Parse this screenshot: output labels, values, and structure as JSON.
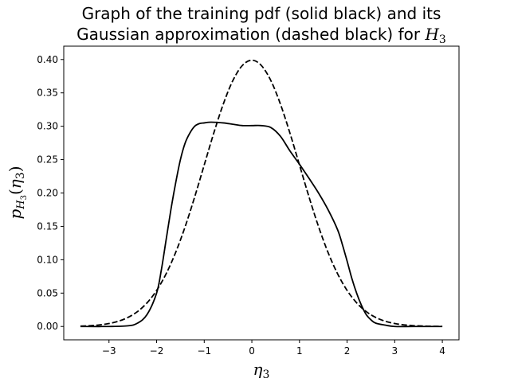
{
  "chart_data": {
    "type": "line",
    "title_line1": "Graph of the training pdf (solid black) and its",
    "title_line2_text": "Gaussian approximation (dashed black) for ",
    "title_line2_math": "H",
    "title_line2_sub": "3",
    "xlabel": {
      "symbol": "η",
      "sub": "3"
    },
    "ylabel": {
      "p": "p",
      "H": "H",
      "sub3a": "3",
      "eta": "η",
      "sub3b": "3"
    },
    "xlim": [
      -3.95,
      4.35
    ],
    "ylim": [
      -0.02,
      0.42
    ],
    "xticks": [
      -3,
      -2,
      -1,
      0,
      1,
      2,
      3,
      4
    ],
    "xtick_labels": [
      "−3",
      "−2",
      "−1",
      "0",
      "1",
      "2",
      "3",
      "4"
    ],
    "yticks": [
      0.0,
      0.05,
      0.1,
      0.15,
      0.2,
      0.25,
      0.3,
      0.35,
      0.4
    ],
    "ytick_labels": [
      "0.00",
      "0.05",
      "0.10",
      "0.15",
      "0.20",
      "0.25",
      "0.30",
      "0.35",
      "0.40"
    ],
    "grid": false,
    "series": [
      {
        "style": "solid",
        "color": "#000000",
        "x": [
          -3.6,
          -3.0,
          -2.6,
          -2.4,
          -2.2,
          -2.0,
          -1.9,
          -1.8,
          -1.7,
          -1.6,
          -1.5,
          -1.4,
          -1.3,
          -1.2,
          -1.1,
          -1.0,
          -0.9,
          -0.8,
          -0.6,
          -0.4,
          -0.2,
          0.0,
          0.2,
          0.4,
          0.6,
          0.8,
          1.0,
          1.2,
          1.4,
          1.6,
          1.8,
          1.9,
          2.0,
          2.1,
          2.2,
          2.3,
          2.4,
          2.5,
          2.6,
          2.8,
          3.0,
          3.4,
          4.0
        ],
        "y": [
          0.0,
          0.0,
          0.001,
          0.005,
          0.018,
          0.05,
          0.085,
          0.13,
          0.175,
          0.215,
          0.25,
          0.275,
          0.29,
          0.3,
          0.304,
          0.305,
          0.306,
          0.306,
          0.305,
          0.303,
          0.301,
          0.301,
          0.301,
          0.298,
          0.285,
          0.263,
          0.243,
          0.222,
          0.2,
          0.175,
          0.145,
          0.123,
          0.098,
          0.072,
          0.05,
          0.032,
          0.018,
          0.01,
          0.005,
          0.002,
          0.0,
          0.0,
          0.0
        ]
      },
      {
        "style": "dashed",
        "color": "#000000",
        "x": [
          -3.6,
          -3.4,
          -3.2,
          -3.0,
          -2.8,
          -2.6,
          -2.4,
          -2.2,
          -2.0,
          -1.8,
          -1.6,
          -1.4,
          -1.2,
          -1.0,
          -0.8,
          -0.6,
          -0.4,
          -0.2,
          0.0,
          0.2,
          0.4,
          0.6,
          0.8,
          1.0,
          1.2,
          1.4,
          1.6,
          1.8,
          2.0,
          2.2,
          2.4,
          2.6,
          2.8,
          3.0,
          3.2,
          3.4,
          3.6,
          3.8,
          4.0
        ],
        "y": [
          0.0006,
          0.0012,
          0.0024,
          0.0044,
          0.0079,
          0.0136,
          0.0224,
          0.0355,
          0.054,
          0.079,
          0.1109,
          0.1497,
          0.1942,
          0.242,
          0.2897,
          0.3332,
          0.3683,
          0.391,
          0.3989,
          0.391,
          0.3683,
          0.3332,
          0.2897,
          0.242,
          0.1942,
          0.1497,
          0.1109,
          0.079,
          0.054,
          0.0355,
          0.0224,
          0.0136,
          0.0079,
          0.0044,
          0.0024,
          0.0012,
          0.0006,
          0.0003,
          0.0001
        ]
      }
    ]
  }
}
